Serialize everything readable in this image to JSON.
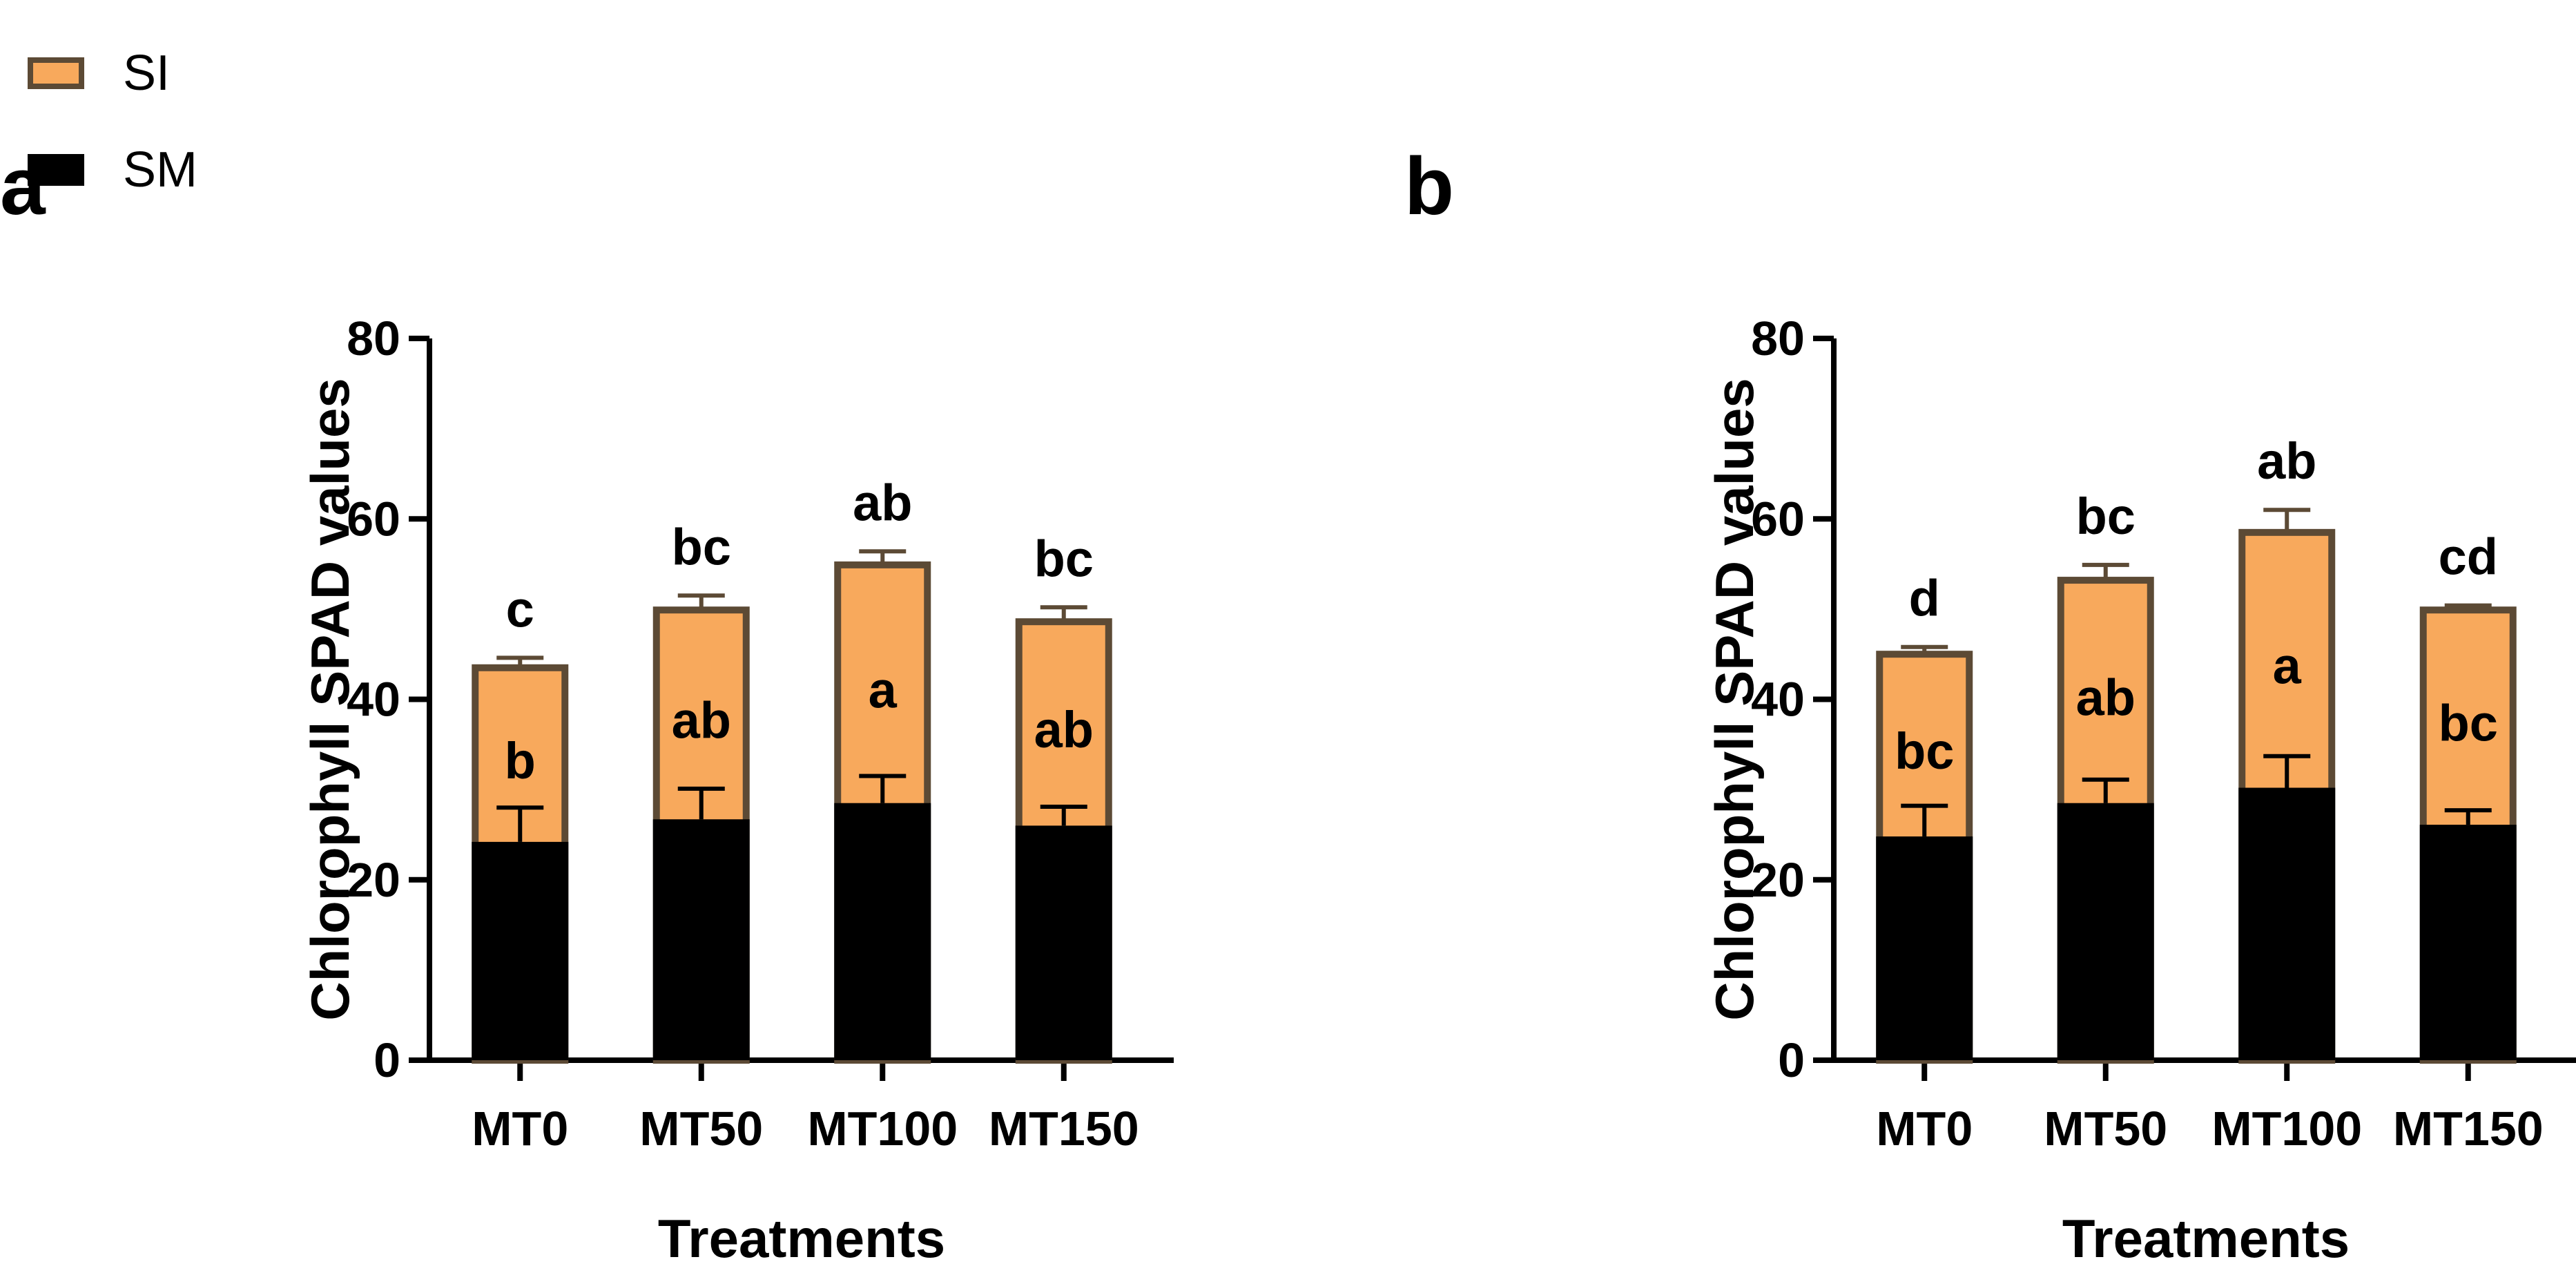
{
  "legend": {
    "items": [
      {
        "label": "SI",
        "fill": "#F8A95C",
        "stroke": "#5C4A35"
      },
      {
        "label": "SM",
        "fill": "#000000",
        "stroke": "#000000"
      }
    ]
  },
  "colors": {
    "si_fill": "#F8A95C",
    "si_stroke": "#5C4A35",
    "sm_fill": "#000000",
    "axis": "#000000"
  },
  "chart_data": [
    {
      "type": "bar",
      "panel_label": "a",
      "stacked": true,
      "categories": [
        "MT0",
        "MT50",
        "MT100",
        "MT150"
      ],
      "ylabel": "Chlorophyll SPAD values",
      "xlabel": "Treatments",
      "ylim": [
        0,
        80
      ],
      "yticks": [
        0,
        20,
        40,
        60,
        80
      ],
      "series": [
        {
          "name": "SM",
          "values": [
            24.2,
            26.7,
            28.5,
            26.0
          ],
          "errors": [
            3.8,
            3.4,
            3.0,
            2.1
          ],
          "labels": [
            "b",
            "ab",
            "a",
            "ab"
          ]
        },
        {
          "name": "SI",
          "values": [
            43.5,
            49.9,
            54.9,
            48.6
          ],
          "errors": [
            1.1,
            1.6,
            1.5,
            1.6
          ],
          "labels": [
            "c",
            "bc",
            "ab",
            "bc"
          ]
        }
      ]
    },
    {
      "type": "bar",
      "panel_label": "b",
      "stacked": true,
      "categories": [
        "MT0",
        "MT50",
        "MT100",
        "MT150"
      ],
      "ylabel": "Chlorophyll SPAD values",
      "xlabel": "Treatments",
      "ylim": [
        0,
        80
      ],
      "yticks": [
        0,
        20,
        40,
        60,
        80
      ],
      "series": [
        {
          "name": "SM",
          "values": [
            24.8,
            28.5,
            30.2,
            26.1
          ],
          "errors": [
            3.4,
            2.6,
            3.5,
            1.6
          ],
          "labels": [
            "bc",
            "ab",
            "a",
            "bc"
          ]
        },
        {
          "name": "SI",
          "values": [
            45.0,
            53.2,
            58.5,
            49.9
          ],
          "errors": [
            0.8,
            1.7,
            2.5,
            0.5
          ],
          "labels": [
            "d",
            "bc",
            "ab",
            "cd"
          ]
        }
      ]
    }
  ]
}
